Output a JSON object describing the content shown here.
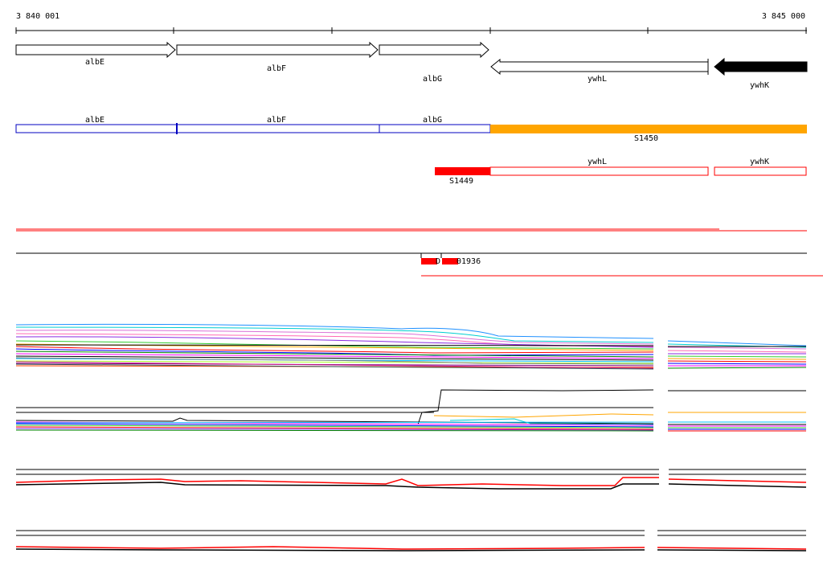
{
  "ruler": {
    "start_label": "3 840 001",
    "end_label": "3 845 000"
  },
  "genes": [
    {
      "name": "albE",
      "strand": "+"
    },
    {
      "name": "albF",
      "strand": "+"
    },
    {
      "name": "albG",
      "strand": "+"
    },
    {
      "name": "ywhL",
      "strand": "-"
    },
    {
      "name": "ywhK",
      "strand": "-",
      "highlighted": true
    }
  ],
  "transcripts_track": {
    "segments": [
      {
        "label": "albE"
      },
      {
        "label": "albF"
      },
      {
        "label": "albG"
      }
    ],
    "highlight": {
      "label": "S1450",
      "color": "#ffa500"
    }
  },
  "second_track": {
    "highlight": {
      "label": "S1449",
      "color": "#ff0000"
    },
    "segments": [
      {
        "label": "ywhL"
      },
      {
        "label": "ywhK"
      }
    ]
  },
  "feature_track": {
    "label_a": "D",
    "label_b": "01936"
  },
  "colors": {
    "gene_outline": "#000000",
    "transcript_outline": "#0000c0",
    "orange": "#ffa500",
    "red": "#ff0000",
    "black": "#000000"
  }
}
